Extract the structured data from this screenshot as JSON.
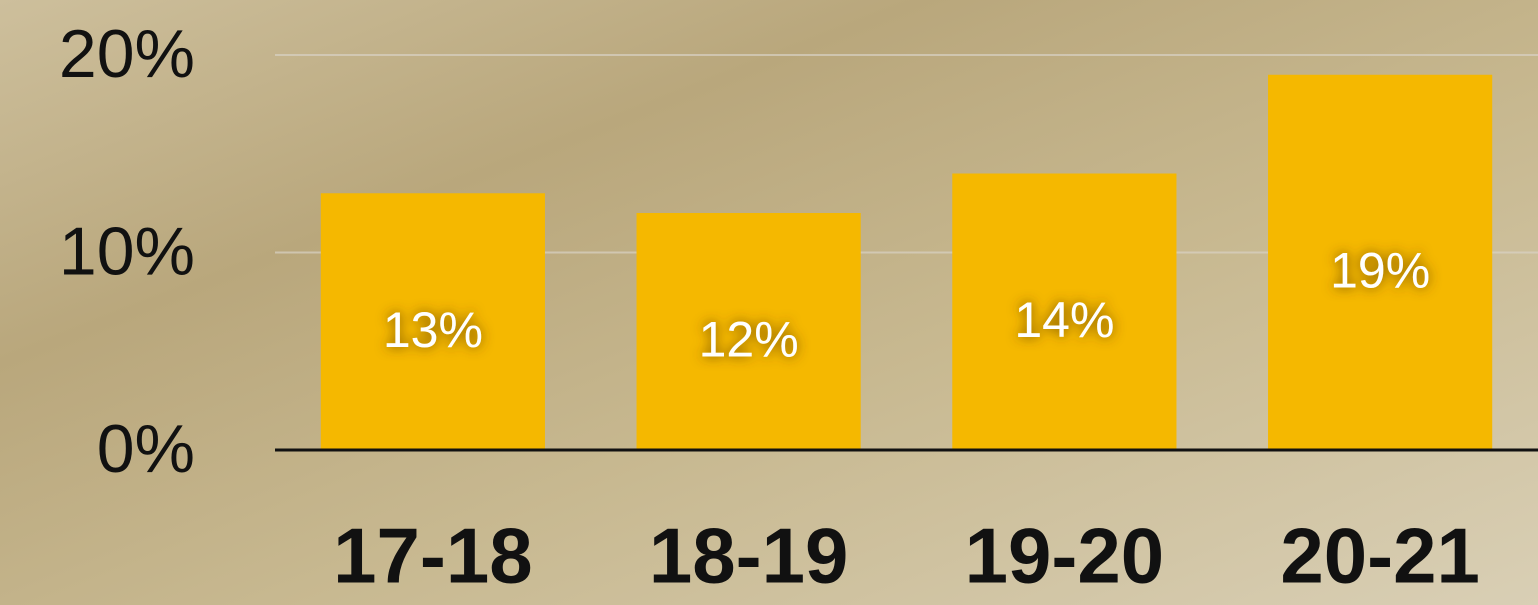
{
  "chart_data": {
    "type": "bar",
    "categories": [
      "17-18",
      "18-19",
      "19-20",
      "20-21"
    ],
    "values": [
      13,
      12,
      14,
      19
    ],
    "value_labels": [
      "13%",
      "12%",
      "14%",
      "19%"
    ],
    "color": "#f5b800",
    "ylim": [
      0,
      20
    ],
    "yticks": [
      {
        "value": 0,
        "label": "0%"
      },
      {
        "value": 10,
        "label": "10%"
      },
      {
        "value": 20,
        "label": "20%"
      }
    ],
    "grid": true
  }
}
